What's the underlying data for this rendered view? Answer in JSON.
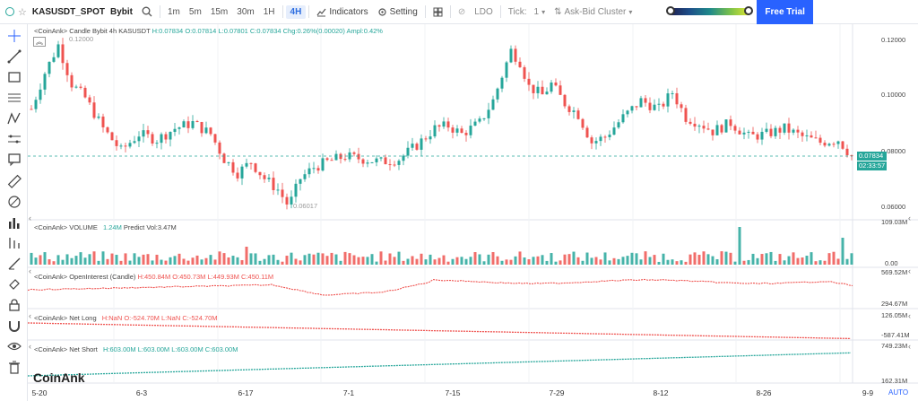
{
  "toolbar": {
    "symbol": "KASUSDT_SPOT",
    "exchange": "Bybit",
    "timeframes": [
      "1m",
      "5m",
      "15m",
      "30m",
      "1H",
      "4H"
    ],
    "active_timeframe": "4H",
    "indicators_label": "Indicators",
    "setting_label": "Setting",
    "ldo_label": "LDO",
    "tick_label": "Tick:",
    "tick_value": "1",
    "cluster_label": "Ask-Bid Cluster",
    "free_trial_label": "Free Trial"
  },
  "panes": {
    "price": {
      "legend": "<CoinAnk> Candle Bybit 4h KASUSDT",
      "H": "H:0.07834",
      "O": "O:0.07814",
      "L": "L:0.07801",
      "C": "C:0.07834",
      "chg": "Chg:0.26%(0.00020)",
      "ampl": "Ampl:0.42%",
      "max_label": "0.12000",
      "min_label": "0.06017",
      "ticks": [
        "0.12000",
        "0.10000",
        "0.08000",
        "0.06000"
      ],
      "current_price": "0.07834",
      "countdown": "02:33:57"
    },
    "volume": {
      "legend": "<CoinAnk> VOLUME",
      "vol": "1.24M",
      "predict": "Predict Vol:3.47M",
      "ticks": [
        "109.03M",
        "0.00"
      ]
    },
    "oi": {
      "legend": "<CoinAnk> OpenInterest (Candle)",
      "H": "H:450.84M",
      "O": "O:450.73M",
      "L": "L:449.93M",
      "C": "C:450.11M",
      "ticks": [
        "569.52M",
        "294.67M"
      ]
    },
    "net_long": {
      "legend": "<CoinAnk> Net Long",
      "values": "H:NaN O:-524.70M L:NaN C:-524.70M",
      "ticks": [
        "126.05M",
        "-587.41M"
      ]
    },
    "net_short": {
      "legend": "<CoinAnk> Net Short",
      "values": "H:603.00M L:603.00M L:603.00M C:603.00M",
      "ticks": [
        "749.23M",
        "162.31M"
      ]
    }
  },
  "x_axis": [
    "5-20",
    "6-3",
    "6-17",
    "7-1",
    "7-15",
    "7-29",
    "8-12",
    "8-26",
    "9-9"
  ],
  "auto_label": "AUTO",
  "logo": "CoinAnk",
  "colors": {
    "up": "#26a69a",
    "down": "#ef5350",
    "accent": "#2962ff"
  },
  "left_tools": [
    "crosshair-icon",
    "trend-line-icon",
    "rectangle-icon",
    "horizontal-lines-icon",
    "pattern-icon",
    "measure-icon",
    "comment-icon",
    "ruler-icon",
    "eraser-icon",
    "bar-chart-icon",
    "indicator-icon",
    "brush-icon",
    "magnet-lock-icon",
    "lock-icon",
    "magnet-icon",
    "eye-icon",
    "trash-icon"
  ]
}
